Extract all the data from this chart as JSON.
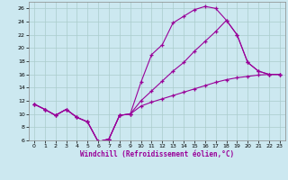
{
  "xlabel": "Windchill (Refroidissement éolien,°C)",
  "background_color": "#cce8f0",
  "grid_color": "#aacccc",
  "line_color": "#990099",
  "xlim": [
    -0.5,
    23.5
  ],
  "ylim": [
    6,
    27
  ],
  "yticks": [
    6,
    8,
    10,
    12,
    14,
    16,
    18,
    20,
    22,
    24,
    26
  ],
  "xticks": [
    0,
    1,
    2,
    3,
    4,
    5,
    6,
    7,
    8,
    9,
    10,
    11,
    12,
    13,
    14,
    15,
    16,
    17,
    18,
    19,
    20,
    21,
    22,
    23
  ],
  "line1_x": [
    0,
    1,
    2,
    3,
    4,
    5,
    6,
    7,
    8,
    9,
    10,
    11,
    12,
    13,
    14,
    15,
    16,
    17,
    18,
    19,
    20,
    21,
    22,
    23
  ],
  "line1_y": [
    11.5,
    10.7,
    9.8,
    10.7,
    9.5,
    8.8,
    5.8,
    6.2,
    9.8,
    10.0,
    14.8,
    19.0,
    20.5,
    23.8,
    24.8,
    25.8,
    26.3,
    26.0,
    24.2,
    22.0,
    17.8,
    16.5,
    16.0,
    16.0
  ],
  "line2_x": [
    0,
    1,
    2,
    3,
    4,
    5,
    6,
    7,
    8,
    9,
    10,
    11,
    12,
    13,
    14,
    15,
    16,
    17,
    18,
    19,
    20,
    21,
    22,
    23
  ],
  "line2_y": [
    11.5,
    10.7,
    9.8,
    10.7,
    9.5,
    8.8,
    5.8,
    6.2,
    9.8,
    10.0,
    11.2,
    11.8,
    12.3,
    12.8,
    13.3,
    13.8,
    14.3,
    14.8,
    15.2,
    15.5,
    15.7,
    15.9,
    16.0,
    16.0
  ],
  "line3_x": [
    0,
    1,
    2,
    3,
    4,
    5,
    6,
    7,
    8,
    9,
    10,
    11,
    12,
    13,
    14,
    15,
    16,
    17,
    18,
    19,
    20,
    21,
    22,
    23
  ],
  "line3_y": [
    11.5,
    10.7,
    9.8,
    10.7,
    9.5,
    8.8,
    5.8,
    6.2,
    9.8,
    10.0,
    12.0,
    13.5,
    15.0,
    16.5,
    17.8,
    19.5,
    21.0,
    22.5,
    24.2,
    22.0,
    17.8,
    16.5,
    16.0,
    16.0
  ]
}
